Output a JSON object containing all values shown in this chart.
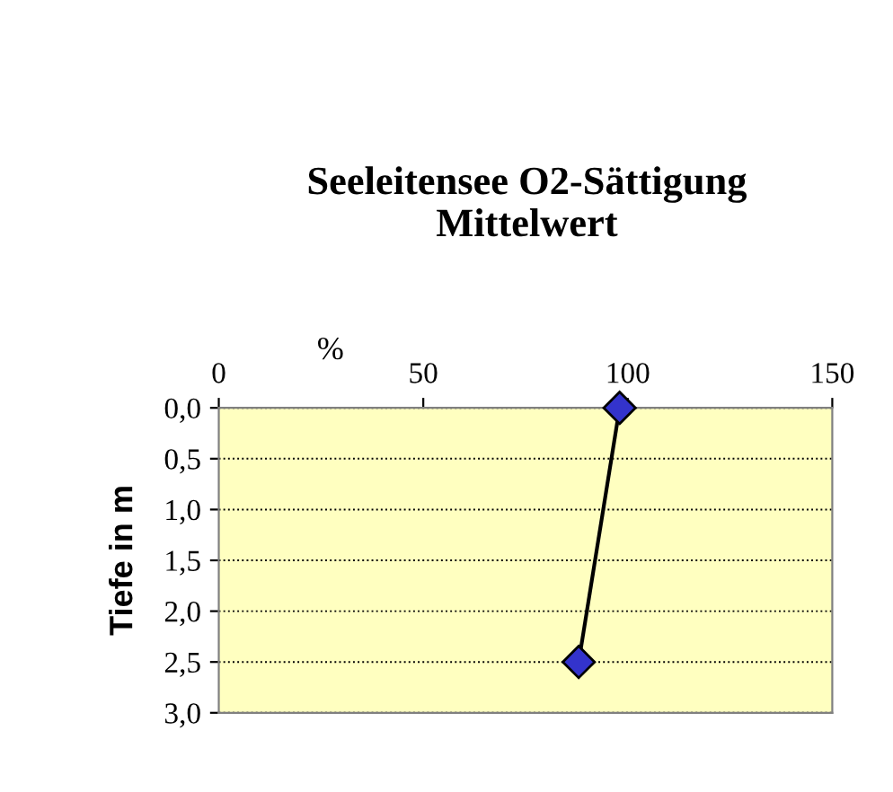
{
  "chart_data": {
    "type": "line",
    "title": "Seeleitensee O2-Sättigung\nMittelwert",
    "xlabel": "%",
    "ylabel": "Tiefe in m",
    "series": [
      {
        "x": [
          98,
          88
        ],
        "values": [
          0.0,
          2.5
        ],
        "color": "#3333cc"
      }
    ],
    "xlim": [
      0,
      150
    ],
    "xticks": [
      0,
      50,
      100,
      150
    ],
    "ylim": [
      3.0,
      0.0
    ],
    "yticks": [
      {
        "value": 0.0,
        "label": "0,0"
      },
      {
        "value": 0.5,
        "label": "0,5"
      },
      {
        "value": 1.0,
        "label": "1,0"
      },
      {
        "value": 1.5,
        "label": "1,5"
      },
      {
        "value": 2.0,
        "label": "2,0"
      },
      {
        "value": 2.5,
        "label": "2,5"
      },
      {
        "value": 3.0,
        "label": "3,0"
      }
    ],
    "grid": "y",
    "marker": "diamond",
    "line_style": "solid",
    "legend": false
  }
}
